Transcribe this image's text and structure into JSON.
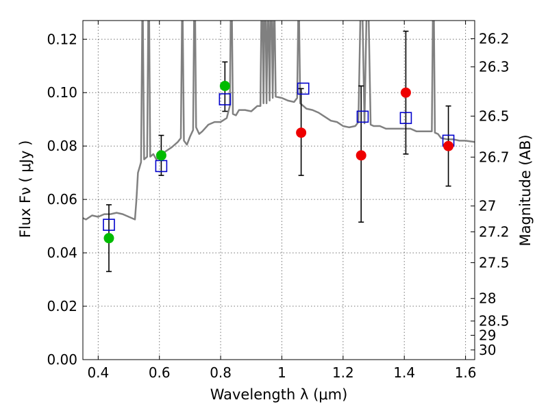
{
  "chart_data": {
    "type": "scatter",
    "xlabel": "Wavelength  λ (μm)",
    "ylabel": "Flux  Fν  ( μJy )",
    "ylabel_right": "Magnitude (AB)",
    "xlim": [
      0.35,
      1.63
    ],
    "ylim": [
      0.0,
      0.127
    ],
    "grid": true,
    "x_ticks": [
      0.4,
      0.6,
      0.8,
      1.0,
      1.2,
      1.4,
      1.6
    ],
    "x_tick_labels": [
      "0.4",
      "0.6",
      "0.8",
      "1",
      "1.2",
      "1.4",
      "1.6"
    ],
    "y_ticks": [
      0.0,
      0.02,
      0.04,
      0.06,
      0.08,
      0.1,
      0.12
    ],
    "y_tick_labels": [
      "0.00",
      "0.02",
      "0.04",
      "0.06",
      "0.08",
      "0.10",
      "0.12"
    ],
    "right_ticks": [
      {
        "label": "26.2",
        "mag": 26.2
      },
      {
        "label": "26.3",
        "mag": 26.3
      },
      {
        "label": "26.5",
        "mag": 26.5
      },
      {
        "label": "26.7",
        "mag": 26.7
      },
      {
        "label": "27",
        "mag": 27.0
      },
      {
        "label": "27.2",
        "mag": 27.2
      },
      {
        "label": "27.5",
        "mag": 27.5
      },
      {
        "label": "28",
        "mag": 28.0
      },
      {
        "label": "28.5",
        "mag": 28.5
      },
      {
        "label": "29",
        "mag": 29.0
      },
      {
        "label": "30",
        "mag": 30.0
      }
    ],
    "colors": {
      "model": "#808080",
      "detection": "#00bb00",
      "upper": "#ee0000",
      "model_flux": "#0000cc",
      "errorbar": "#000000"
    },
    "observed": [
      {
        "x": 0.435,
        "y": 0.0455,
        "err_low": 0.033,
        "err_high": 0.058,
        "kind": "detection"
      },
      {
        "x": 0.606,
        "y": 0.0765,
        "err_low": 0.069,
        "err_high": 0.084,
        "kind": "detection"
      },
      {
        "x": 0.814,
        "y": 0.1025,
        "err_low": 0.093,
        "err_high": 0.1115,
        "kind": "detection"
      },
      {
        "x": 1.063,
        "y": 0.085,
        "err_low": 0.069,
        "err_high": 0.1015,
        "kind": "upper"
      },
      {
        "x": 1.259,
        "y": 0.0765,
        "err_low": 0.0515,
        "err_high": 0.1025,
        "kind": "upper"
      },
      {
        "x": 1.405,
        "y": 0.1,
        "err_low": 0.077,
        "err_high": 0.123,
        "kind": "upper"
      },
      {
        "x": 1.544,
        "y": 0.08,
        "err_low": 0.065,
        "err_high": 0.095,
        "kind": "upper"
      }
    ],
    "model_photometry": [
      {
        "x": 0.435,
        "y": 0.0505
      },
      {
        "x": 0.606,
        "y": 0.0725
      },
      {
        "x": 0.814,
        "y": 0.0975
      },
      {
        "x": 1.07,
        "y": 0.1015
      },
      {
        "x": 1.264,
        "y": 0.091
      },
      {
        "x": 1.405,
        "y": 0.0905
      },
      {
        "x": 1.544,
        "y": 0.082
      }
    ],
    "model_spectrum": {
      "x": [
        0.35,
        0.36,
        0.38,
        0.4,
        0.42,
        0.44,
        0.46,
        0.48,
        0.5,
        0.52,
        0.525,
        0.53,
        0.535,
        0.54,
        0.545,
        0.55,
        0.56,
        0.565,
        0.57,
        0.58,
        0.59,
        0.6,
        0.62,
        0.64,
        0.66,
        0.67,
        0.675,
        0.68,
        0.69,
        0.7,
        0.71,
        0.715,
        0.72,
        0.73,
        0.74,
        0.76,
        0.78,
        0.8,
        0.82,
        0.83,
        0.835,
        0.84,
        0.85,
        0.86,
        0.88,
        0.9,
        0.92,
        0.93,
        0.935,
        0.94,
        0.945,
        0.95,
        0.955,
        0.96,
        0.965,
        0.97,
        0.975,
        0.98,
        1.0,
        1.02,
        1.04,
        1.05,
        1.055,
        1.06,
        1.07,
        1.08,
        1.1,
        1.12,
        1.14,
        1.16,
        1.18,
        1.2,
        1.22,
        1.24,
        1.25,
        1.26,
        1.27,
        1.28,
        1.29,
        1.3,
        1.32,
        1.34,
        1.36,
        1.38,
        1.4,
        1.42,
        1.44,
        1.46,
        1.48,
        1.49,
        1.495,
        1.5,
        1.51,
        1.52,
        1.54,
        1.56,
        1.58,
        1.6,
        1.63
      ],
      "y": [
        0.053,
        0.0525,
        0.054,
        0.0535,
        0.0545,
        0.0545,
        0.055,
        0.0545,
        0.0535,
        0.0525,
        0.06,
        0.07,
        0.072,
        0.074,
        0.14,
        0.075,
        0.076,
        0.15,
        0.076,
        0.077,
        0.075,
        0.076,
        0.078,
        0.0795,
        0.0815,
        0.083,
        0.14,
        0.082,
        0.0805,
        0.0835,
        0.086,
        0.15,
        0.087,
        0.0845,
        0.0855,
        0.088,
        0.089,
        0.089,
        0.0905,
        0.095,
        0.15,
        0.092,
        0.0915,
        0.0935,
        0.0935,
        0.093,
        0.095,
        0.095,
        0.15,
        0.096,
        0.15,
        0.096,
        0.14,
        0.097,
        0.15,
        0.098,
        0.14,
        0.0985,
        0.098,
        0.097,
        0.0965,
        0.098,
        0.14,
        0.096,
        0.095,
        0.094,
        0.0935,
        0.0925,
        0.091,
        0.0895,
        0.089,
        0.0875,
        0.087,
        0.0875,
        0.089,
        0.15,
        0.0885,
        0.15,
        0.088,
        0.0875,
        0.0875,
        0.0865,
        0.0865,
        0.0865,
        0.0865,
        0.0865,
        0.0855,
        0.0855,
        0.0855,
        0.0855,
        0.15,
        0.085,
        0.0845,
        0.083,
        0.0825,
        0.0825,
        0.082,
        0.082,
        0.0815
      ]
    }
  }
}
